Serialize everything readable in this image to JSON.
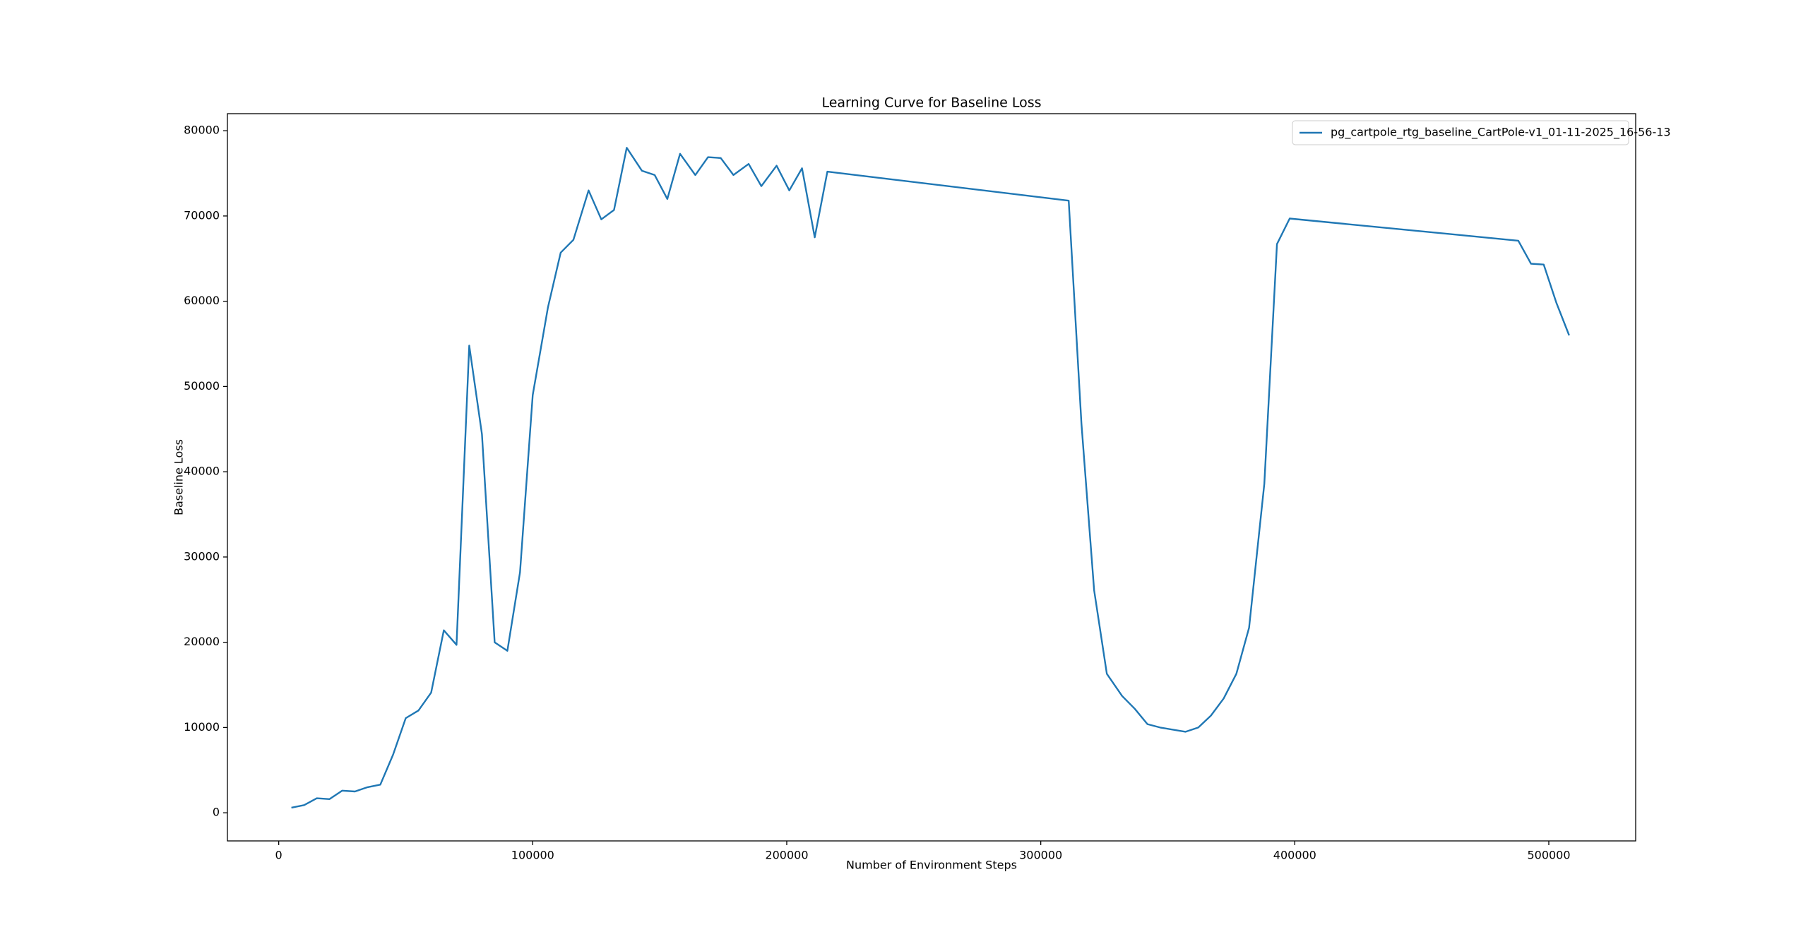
{
  "chart_data": {
    "type": "line",
    "title": "Learning Curve for Baseline Loss",
    "xlabel": "Number of Environment Steps",
    "ylabel": "Baseline Loss",
    "xlim": [
      -20200,
      534200
    ],
    "ylim": [
      -3300,
      82000
    ],
    "xticks": [
      0,
      100000,
      200000,
      300000,
      400000,
      500000
    ],
    "yticks": [
      0,
      10000,
      20000,
      30000,
      40000,
      50000,
      60000,
      70000,
      80000
    ],
    "legend": "upper right",
    "grid": false,
    "x": [
      5000,
      10000,
      15000,
      20000,
      25000,
      30000,
      35000,
      40000,
      45000,
      50000,
      55000,
      60000,
      65000,
      70000,
      75000,
      80000,
      85000,
      90000,
      95000,
      100000,
      106000,
      111000,
      116000,
      122000,
      127000,
      132000,
      137000,
      143000,
      148000,
      153000,
      158000,
      164000,
      169000,
      174000,
      179000,
      185000,
      190000,
      196000,
      201000,
      206000,
      211000,
      216000,
      311000,
      316000,
      321000,
      326000,
      332000,
      337000,
      342000,
      347000,
      357000,
      362000,
      367000,
      372000,
      377000,
      382000,
      388000,
      393000,
      398000,
      488000,
      493000,
      498000,
      503000,
      508000
    ],
    "series": [
      {
        "name": "pg_cartpole_rtg_baseline_CartPole-v1_01-11-2025_16-56-13",
        "color": "#1f77b4",
        "values": [
          600,
          900,
          1700,
          1600,
          2600,
          2500,
          3000,
          3300,
          6800,
          11100,
          12000,
          14100,
          21400,
          19700,
          54800,
          44400,
          20000,
          19000,
          28200,
          49000,
          59300,
          65700,
          67200,
          73000,
          69600,
          70700,
          78000,
          75300,
          74800,
          72000,
          77300,
          74800,
          76900,
          76800,
          74800,
          76100,
          73500,
          75900,
          73000,
          75600,
          67500,
          75200,
          71800,
          45700,
          26100,
          16300,
          13700,
          12200,
          10400,
          10000,
          9500,
          10000,
          11400,
          13400,
          16300,
          21700,
          38600,
          66700,
          69700,
          67100,
          64400,
          64300,
          59800,
          56000
        ]
      }
    ]
  }
}
